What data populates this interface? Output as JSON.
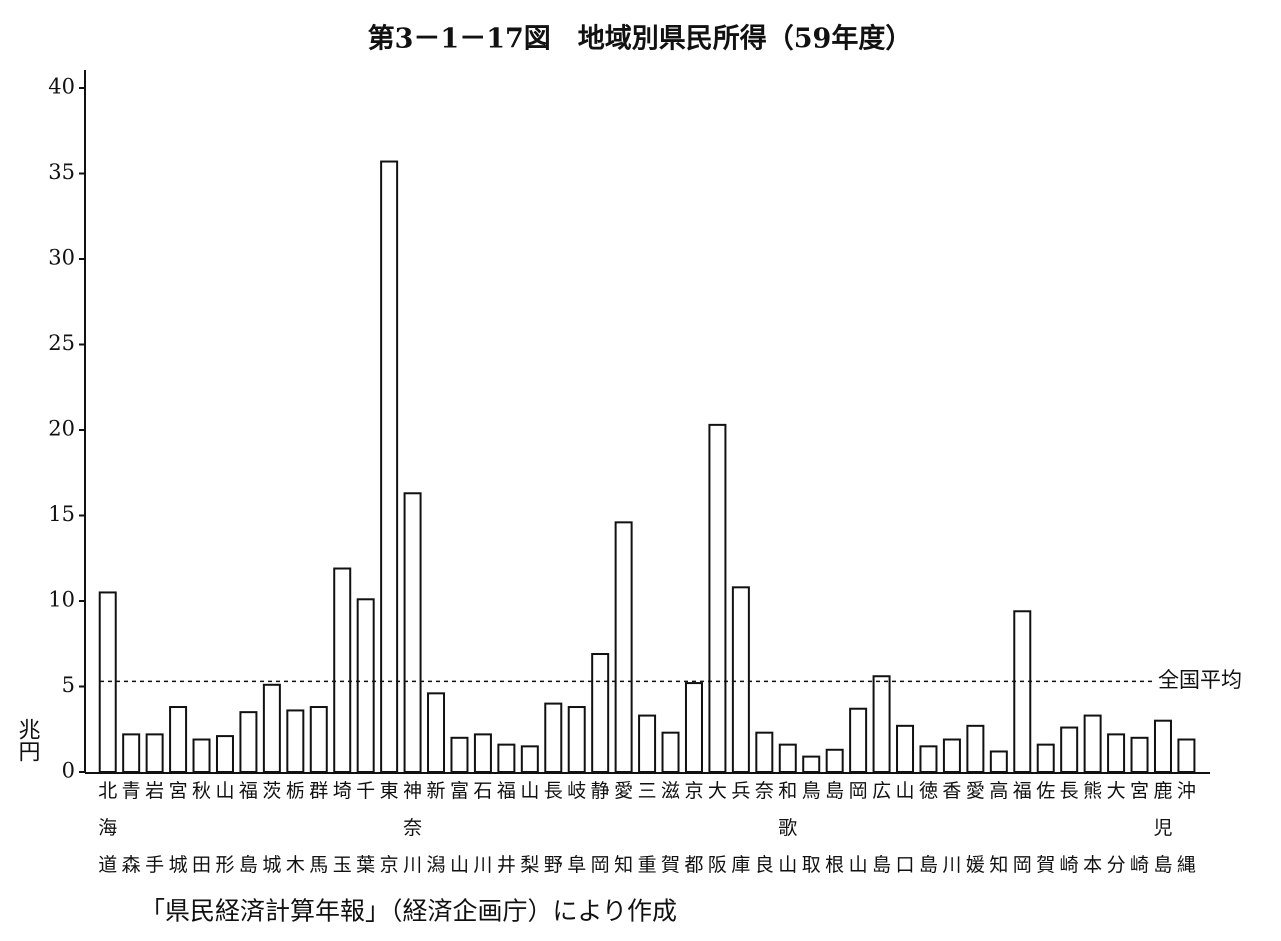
{
  "chart_data": {
    "type": "bar",
    "title": "第3－1－17図　地域別県民所得（59年度）",
    "ylabel": "兆円",
    "source": "「県民経済計算年報」（経済企画庁）により作成",
    "categories": [
      "北海道",
      "青森",
      "岩手",
      "宮城",
      "秋田",
      "山形",
      "福島",
      "茨城",
      "栃木",
      "群馬",
      "埼玉",
      "千葉",
      "東京",
      "神奈川",
      "新潟",
      "富山",
      "石川",
      "福井",
      "山梨",
      "長野",
      "岐阜",
      "静岡",
      "愛知",
      "三重",
      "滋賀",
      "京都",
      "大阪",
      "兵庫",
      "奈良",
      "和歌山",
      "鳥取",
      "島根",
      "岡山",
      "広島",
      "山口",
      "徳島",
      "香川",
      "愛媛",
      "高知",
      "福岡",
      "佐賀",
      "長崎",
      "熊本",
      "大分",
      "宮崎",
      "鹿児島",
      "沖縄"
    ],
    "values": [
      10.5,
      2.2,
      2.2,
      3.8,
      1.9,
      2.1,
      3.5,
      5.1,
      3.6,
      3.8,
      11.9,
      10.1,
      35.7,
      16.3,
      4.6,
      2.0,
      2.2,
      1.6,
      1.5,
      4.0,
      3.8,
      6.9,
      14.6,
      3.3,
      2.3,
      5.2,
      20.3,
      10.8,
      2.3,
      1.6,
      0.9,
      1.3,
      3.7,
      5.6,
      2.7,
      1.5,
      1.9,
      2.7,
      1.2,
      9.4,
      1.6,
      2.6,
      3.3,
      2.2,
      2.0,
      3.0,
      1.9
    ],
    "color": "#ffffff",
    "average": {
      "label": "全国平均",
      "value": 5.3
    },
    "ylim": [
      0,
      40
    ],
    "yticks": [
      0,
      5,
      10,
      15,
      20,
      25,
      30,
      35,
      40
    ],
    "grid": false
  }
}
